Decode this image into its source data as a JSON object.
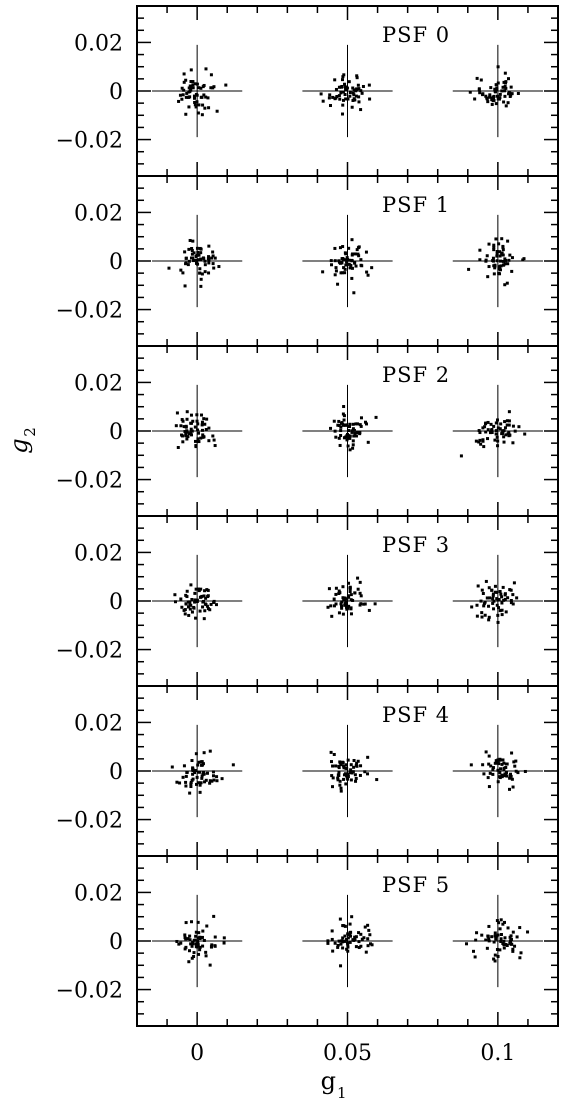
{
  "chart_data": {
    "type": "scatter",
    "xlabel": "g",
    "xlabel_sub": "1",
    "ylabel": "g",
    "ylabel_sub": "2",
    "xlim": [
      -0.02,
      0.12
    ],
    "ylim": [
      -0.035,
      0.035
    ],
    "x_ticks": [
      {
        "value": 0,
        "label": "0"
      },
      {
        "value": 0.05,
        "label": "0.05"
      },
      {
        "value": 0.1,
        "label": "0.1"
      }
    ],
    "y_ticks": [
      {
        "value": 0.02,
        "label": "0.02"
      },
      {
        "value": 0,
        "label": "0"
      },
      {
        "value": -0.02,
        "label": "−0.02"
      }
    ],
    "crosshairs": {
      "centers": [
        0,
        0.05,
        0.1
      ],
      "half_width": 0.015,
      "half_height": 0.019
    },
    "panels": [
      {
        "title": "PSF 0",
        "seed": 11
      },
      {
        "title": "PSF 1",
        "seed": 23
      },
      {
        "title": "PSF 2",
        "seed": 37
      },
      {
        "title": "PSF 3",
        "seed": 41
      },
      {
        "title": "PSF 4",
        "seed": 59
      },
      {
        "title": "PSF 5",
        "seed": 67
      }
    ],
    "points_per_cluster": 60,
    "cluster_scatter": {
      "sx": 0.004,
      "sy": 0.0045
    }
  }
}
